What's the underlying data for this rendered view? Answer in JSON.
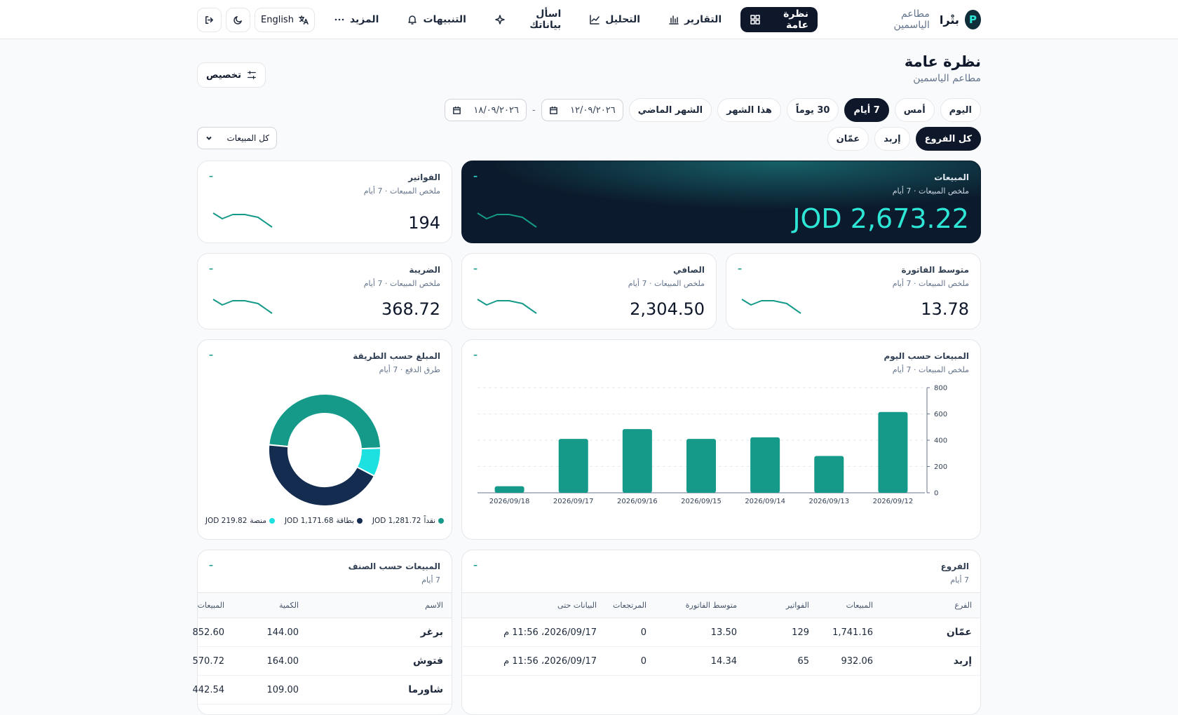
{
  "nav": {
    "brand": "بتْرا",
    "org": "مطاعم الياسمين",
    "items": [
      "نظرة عامة",
      "التقارير",
      "التحليل",
      "اسأل بياناتك",
      "التنبيهات",
      "المزيد"
    ],
    "active": 0,
    "language": "English"
  },
  "header": {
    "title": "نظرة عامة",
    "subtitle": "مطاعم الياسمين",
    "customize": "تخصيص"
  },
  "filters": {
    "periods": [
      "اليوم",
      "أمس",
      "7 أيام",
      "30 يوماً",
      "هذا الشهر",
      "الشهر الماضي"
    ],
    "active_period": 2,
    "date_from": "١٢/٠٩/٢٠٢٦",
    "date_separator": "-",
    "date_to": "١٨/٠٩/٢٠٢٦",
    "branches": [
      "كل الفروع",
      "إربد",
      "عمّان"
    ],
    "active_branch": 0,
    "sales_filter": "كل المبيعات"
  },
  "kpis": [
    {
      "title": "المبيعات",
      "subtitle": "ملخص المبيعات · 7 أيام",
      "value": "JOD 2,673.22",
      "delta": "–"
    },
    {
      "title": "الفواتير",
      "subtitle": "ملخص المبيعات · 7 أيام",
      "value": "194",
      "delta": "–"
    },
    {
      "title": "متوسط الفاتورة",
      "subtitle": "ملخص المبيعات · 7 أيام",
      "value": "13.78",
      "delta": "–"
    },
    {
      "title": "الصافي",
      "subtitle": "ملخص المبيعات · 7 أيام",
      "value": "2,304.50",
      "delta": "–"
    },
    {
      "title": "الضريبة",
      "subtitle": "ملخص المبيعات · 7 أيام",
      "value": "368.72",
      "delta": "–"
    }
  ],
  "chart_data": [
    {
      "type": "bar",
      "title": "المبيعات حسب اليوم",
      "subtitle": "ملخص المبيعات · 7 أيام",
      "delta": "–",
      "categories": [
        "2026/09/12",
        "2026/09/13",
        "2026/09/14",
        "2026/09/15",
        "2026/09/16",
        "2026/09/17",
        "2026/09/18"
      ],
      "values": [
        615,
        280,
        422,
        410,
        485,
        410,
        50
      ],
      "color": "#159a8a",
      "ylim": [
        0,
        800
      ],
      "yticks": [
        0,
        200,
        400,
        600,
        800
      ],
      "grid": true
    },
    {
      "type": "donut",
      "title": "المبلغ حسب الطريقة",
      "subtitle": "طرق الدفع · 7 أيام",
      "delta": "–",
      "categories": [
        "نقداً",
        "بطاقة",
        "منصة"
      ],
      "values": [
        1281.72,
        1171.68,
        219.82
      ],
      "value_labels": [
        "JOD 1,281.72",
        "JOD 1,171.68",
        "JOD 219.82"
      ],
      "colors": [
        "#159a8a",
        "#132c50",
        "#1de0e0"
      ]
    }
  ],
  "branches_table": {
    "title": "الفروع",
    "subtitle": "7 أيام",
    "delta": "–",
    "columns": [
      "الفرع",
      "المبيعات",
      "الفواتير",
      "متوسط الفاتورة",
      "المرتجعات",
      "البيانات حتى"
    ],
    "rows": [
      [
        "عمّان",
        "1,741.16",
        "129",
        "13.50",
        "0",
        "2026/09/17، 11:56 م"
      ],
      [
        "إربد",
        "932.06",
        "65",
        "14.34",
        "0",
        "2026/09/17، 11:56 م"
      ]
    ]
  },
  "items_table": {
    "title": "المبيعات حسب الصنف",
    "subtitle": "7 أيام",
    "delta": "–",
    "columns": [
      "الاسم",
      "الكمية",
      "المبيعات"
    ],
    "rows": [
      [
        "برغر",
        "144.00",
        "852.60"
      ],
      [
        "فتوش",
        "164.00",
        "570.72"
      ],
      [
        "شاورما",
        "109.00",
        "442.54"
      ]
    ]
  }
}
